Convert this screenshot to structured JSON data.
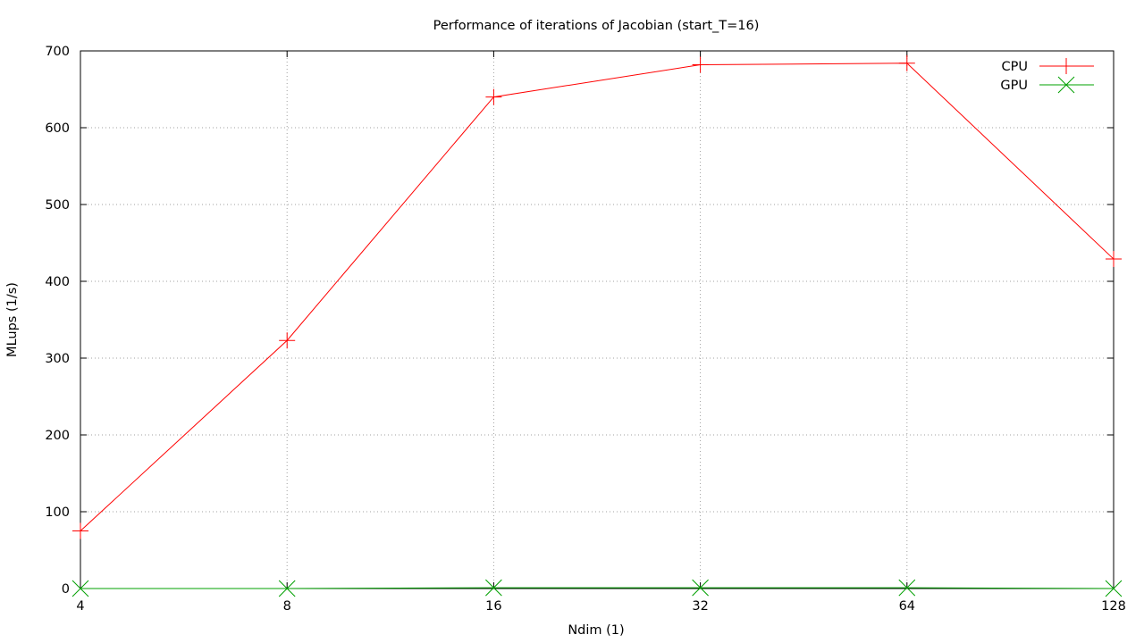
{
  "chart_data": {
    "type": "line",
    "title": "Performance of iterations of Jacobian (start_T=16)",
    "xlabel": "Ndim (1)",
    "ylabel": "MLups (1/s)",
    "xscale": "log2",
    "x": [
      4,
      8,
      16,
      32,
      64,
      128
    ],
    "xticks": [
      "4",
      "8",
      "16",
      "32",
      "64",
      "128"
    ],
    "ylim": [
      0,
      700
    ],
    "yticks": [
      "0",
      "100",
      "200",
      "300",
      "400",
      "500",
      "600",
      "700"
    ],
    "grid": true,
    "legend_position": "top-right",
    "series": [
      {
        "name": "CPU",
        "color": "#ff0000",
        "marker": "plus",
        "values": [
          75,
          323,
          640,
          682,
          684,
          429
        ]
      },
      {
        "name": "GPU",
        "color": "#00a000",
        "marker": "cross",
        "values": [
          0,
          0,
          1,
          1,
          1,
          0
        ]
      }
    ]
  }
}
